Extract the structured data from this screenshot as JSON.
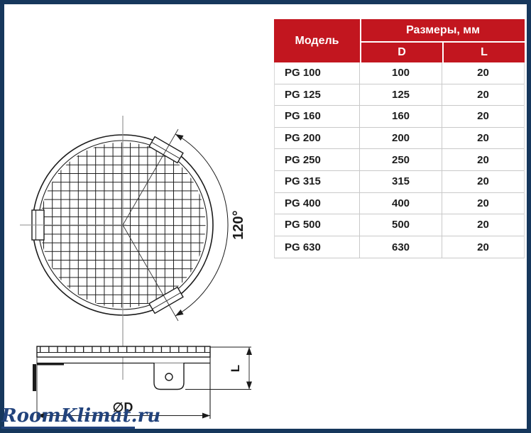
{
  "frame": {
    "border_color": "#16375c",
    "background": "#ffffff"
  },
  "watermark": {
    "text": "RoomKlimat.ru",
    "color": "#22437c"
  },
  "diagram": {
    "angle_label": "120°",
    "diameter_label": "∅D",
    "depth_label": "L",
    "line_color": "#1b1b1b",
    "centerline_color": "#8c8c8c"
  },
  "table": {
    "header": {
      "model": "Модель",
      "dimensions_group": "Размеры, мм",
      "d": "D",
      "l": "L"
    },
    "colors": {
      "header_bg": "#c2161f",
      "header_text": "#ffffff",
      "row_text": "#1d1d1d",
      "grid_line": "#c9c9c9"
    },
    "rows": [
      {
        "model": "PG 100",
        "d": "100",
        "l": "20"
      },
      {
        "model": "PG 125",
        "d": "125",
        "l": "20"
      },
      {
        "model": "PG 160",
        "d": "160",
        "l": "20"
      },
      {
        "model": "PG 200",
        "d": "200",
        "l": "20"
      },
      {
        "model": "PG 250",
        "d": "250",
        "l": "20"
      },
      {
        "model": "PG 315",
        "d": "315",
        "l": "20"
      },
      {
        "model": "PG 400",
        "d": "400",
        "l": "20"
      },
      {
        "model": "PG 500",
        "d": "500",
        "l": "20"
      },
      {
        "model": "PG 630",
        "d": "630",
        "l": "20"
      }
    ]
  }
}
